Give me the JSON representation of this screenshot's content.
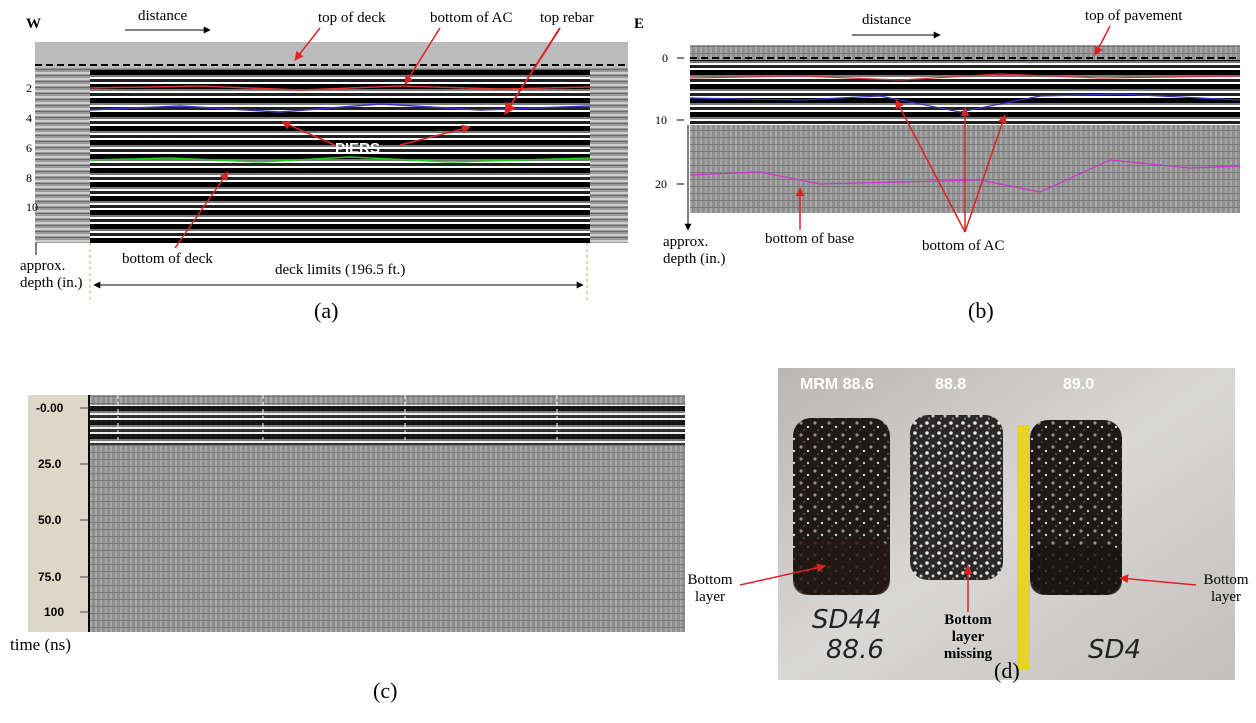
{
  "panels": [
    {
      "caption": "(a)",
      "side": "W",
      "distance": "distance",
      "labels": [
        "top of deck",
        "bottom of AC",
        "top rebar",
        "PIERS",
        "bottom of deck"
      ],
      "depth_ticks": [
        "2",
        "4",
        "6",
        "8",
        "10"
      ],
      "axis_label": [
        "approx.",
        "depth (in.)"
      ],
      "span_label": "deck limits (196.5 ft.)"
    },
    {
      "caption": "(b)",
      "side": "E",
      "distance": "distance",
      "labels": [
        "top of pavement",
        "bottom of base",
        "bottom of AC"
      ],
      "depth_ticks": [
        "0",
        "10",
        "20"
      ],
      "axis_label": [
        "approx.",
        "depth (in.)"
      ]
    },
    {
      "caption": "(c)",
      "time_ticks": [
        "-0.00",
        "25.0",
        "50.0",
        "75.0",
        "100"
      ],
      "axis_label": "time (ns)"
    },
    {
      "caption": "(d)",
      "core_labels": [
        "MRM 88.6",
        "88.8",
        "89.0"
      ],
      "annotations": [
        [
          "Bottom",
          "layer"
        ],
        [
          "Bottom",
          "layer",
          "missing"
        ],
        [
          "Bottom",
          "layer"
        ]
      ],
      "handwriting": [
        "SD44",
        "88.6",
        "SD4"
      ]
    }
  ]
}
